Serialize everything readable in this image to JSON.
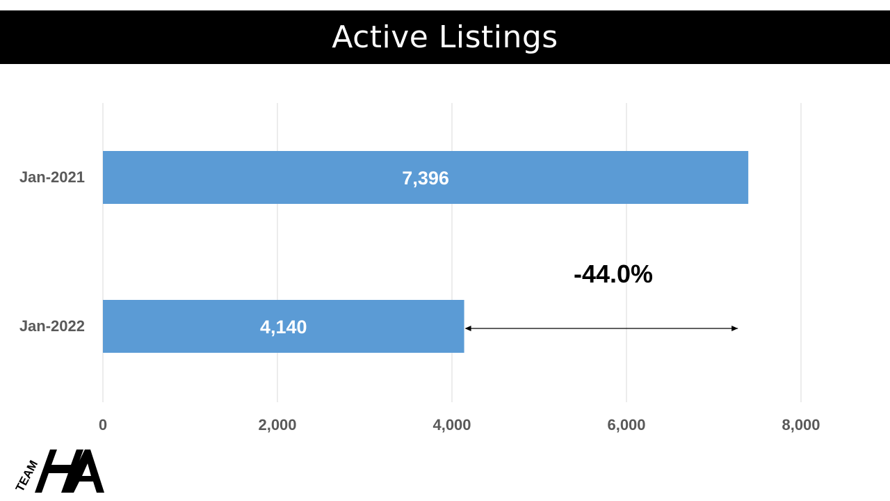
{
  "title": "Active Listings",
  "change_label": "-44.0%",
  "logo": {
    "team_text": "TEAM",
    "letters": "HA"
  },
  "colors": {
    "bar": "#5B9BD5",
    "grid": "#D9D9D9",
    "title_bg": "#000000"
  },
  "chart_data": {
    "type": "bar",
    "orientation": "horizontal",
    "categories": [
      "Jan-2021",
      "Jan-2022"
    ],
    "values": [
      7396,
      4140
    ],
    "value_labels": [
      "7,396",
      "4,140"
    ],
    "xlim": [
      0,
      8000
    ],
    "xticks": [
      0,
      2000,
      4000,
      6000,
      8000
    ],
    "xtick_labels": [
      "0",
      "2,000",
      "4,000",
      "6,000",
      "8,000"
    ],
    "grid": true,
    "annotation": {
      "text": "-44.0%",
      "from_value": 4140,
      "to_value": 7396
    }
  }
}
